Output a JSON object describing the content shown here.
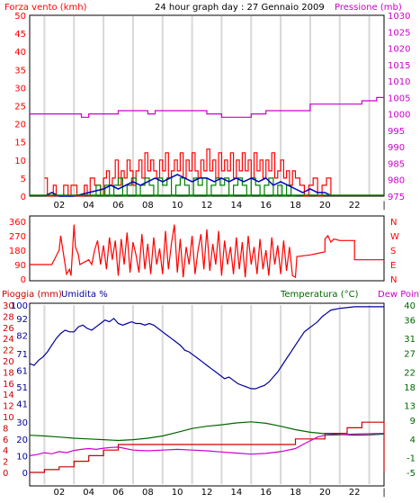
{
  "colors": {
    "wind": "#ff0000",
    "gust": "#008000",
    "wind_avg": "#0000c0",
    "pressure": "#cc00cc",
    "direction": "#ff0000",
    "humidity": "#000099",
    "rain": "#cc0000",
    "temperature": "#006600",
    "dewpoint": "#cc00cc",
    "grid": "#d8d8d8"
  },
  "chart_data": [
    {
      "type": "line",
      "id": "wind-pressure",
      "title": "24 hour graph day : 27 Gennaio 2009",
      "ylabel": "Forza vento (kmh)",
      "y2label": "Pressione (mb)",
      "xlim": [
        0,
        24
      ],
      "ylim": [
        0,
        50
      ],
      "y_ticks": [
        0,
        5,
        10,
        15,
        20,
        25,
        30,
        35,
        40,
        45,
        50
      ],
      "y2lim": [
        975,
        1030
      ],
      "y2_ticks": [
        975,
        980,
        985,
        990,
        995,
        1000,
        1005,
        1010,
        1015,
        1020,
        1025,
        1030
      ],
      "x_tick_labels": [
        "02",
        "04",
        "06",
        "08",
        "10",
        "12",
        "14",
        "16",
        "18",
        "20",
        "22"
      ],
      "series": [
        {
          "key": "wind",
          "axis": "left",
          "x": [
            1.0,
            1.2,
            1.4,
            1.6,
            1.8,
            2.1,
            2.3,
            2.6,
            2.8,
            3.0,
            3.2,
            3.5,
            3.7,
            3.9,
            4.1,
            4.4,
            4.6,
            4.8,
            5.0,
            5.2,
            5.4,
            5.6,
            5.8,
            6.0,
            6.2,
            6.4,
            6.6,
            6.8,
            7.0,
            7.2,
            7.4,
            7.6,
            7.8,
            8.0,
            8.2,
            8.4,
            8.6,
            8.8,
            9.0,
            9.2,
            9.4,
            9.6,
            9.8,
            10.0,
            10.2,
            10.4,
            10.6,
            10.8,
            11.0,
            11.2,
            11.4,
            11.6,
            11.8,
            12.0,
            12.2,
            12.4,
            12.6,
            12.8,
            13.0,
            13.2,
            13.4,
            13.6,
            13.8,
            14.0,
            14.2,
            14.4,
            14.6,
            14.8,
            15.0,
            15.2,
            15.4,
            15.6,
            15.8,
            16.0,
            16.2,
            16.4,
            16.6,
            16.8,
            17.0,
            17.2,
            17.4,
            17.6,
            17.8,
            18.0,
            18.3,
            18.6,
            18.9,
            19.2,
            19.5,
            19.8,
            20.1,
            20.4
          ],
          "values": [
            5,
            0,
            0,
            3,
            0,
            0,
            3,
            0,
            3,
            3,
            0,
            0,
            3,
            0,
            5,
            3,
            3,
            0,
            5,
            7,
            3,
            5,
            10,
            3,
            7,
            5,
            10,
            7,
            3,
            7,
            10,
            5,
            12,
            7,
            10,
            7,
            5,
            10,
            7,
            12,
            5,
            7,
            10,
            7,
            12,
            5,
            10,
            7,
            12,
            7,
            5,
            10,
            7,
            13,
            7,
            10,
            5,
            12,
            7,
            10,
            7,
            12,
            5,
            10,
            7,
            12,
            7,
            10,
            5,
            12,
            7,
            10,
            5,
            10,
            7,
            12,
            5,
            7,
            10,
            5,
            7,
            3,
            7,
            5,
            3,
            0,
            3,
            5,
            0,
            3,
            5,
            0
          ]
        },
        {
          "key": "gust",
          "axis": "left",
          "x": [
            4.2,
            4.5,
            4.8,
            5.1,
            5.4,
            5.7,
            6.0,
            6.3,
            6.6,
            6.9,
            7.2,
            7.5,
            7.8,
            8.1,
            8.4,
            8.7,
            9.0,
            9.3,
            9.6,
            9.9,
            10.2,
            10.5,
            10.8,
            11.1,
            11.4,
            11.7,
            12.0,
            12.3,
            12.6,
            12.9,
            13.2,
            13.5,
            13.8,
            14.1,
            14.4,
            14.7,
            15.0,
            15.3,
            15.6,
            15.9,
            16.2,
            16.5,
            16.8,
            17.1,
            17.4,
            17.7,
            18.0
          ],
          "values": [
            0,
            3,
            0,
            3,
            0,
            3,
            5,
            0,
            3,
            5,
            0,
            3,
            5,
            3,
            0,
            5,
            3,
            5,
            0,
            3,
            5,
            3,
            0,
            5,
            3,
            5,
            0,
            3,
            5,
            3,
            5,
            0,
            3,
            5,
            3,
            0,
            5,
            3,
            0,
            3,
            5,
            0,
            3,
            0,
            3,
            0,
            0
          ]
        },
        {
          "key": "wind_avg",
          "axis": "left",
          "x": [
            1.0,
            1.5,
            2.0,
            3.0,
            4.0,
            5.0,
            5.5,
            6.0,
            6.5,
            7.0,
            7.5,
            8.0,
            8.5,
            9.0,
            9.5,
            10.0,
            10.5,
            11.0,
            11.5,
            12.0,
            12.5,
            13.0,
            13.5,
            14.0,
            14.5,
            15.0,
            15.5,
            16.0,
            16.5,
            17.0,
            17.5,
            18.0,
            18.5,
            19.0,
            19.5,
            20.0,
            20.5
          ],
          "values": [
            0,
            1,
            0,
            0,
            1,
            2,
            3,
            2,
            3,
            4,
            3,
            4,
            5,
            4,
            5,
            6,
            5,
            4,
            5,
            5,
            4,
            5,
            4,
            5,
            4,
            5,
            4,
            5,
            3,
            4,
            3,
            2,
            1,
            2,
            1,
            1,
            0
          ]
        },
        {
          "key": "pressure",
          "axis": "right",
          "x": [
            0,
            3.5,
            3.5,
            4.0,
            4.0,
            6.0,
            6.0,
            8.0,
            8.0,
            8.5,
            8.5,
            12.0,
            12.0,
            13.0,
            13.0,
            15.0,
            15.0,
            16.0,
            16.0,
            19.0,
            19.0,
            22.5,
            22.5,
            23.5,
            23.5,
            24
          ],
          "values": [
            1000,
            1000,
            999,
            999,
            1000,
            1000,
            1001,
            1001,
            1000,
            1000,
            1001,
            1001,
            1000,
            1000,
            999,
            999,
            1000,
            1000,
            1001,
            1001,
            1003,
            1003,
            1004,
            1004,
            1005,
            1005
          ]
        }
      ]
    },
    {
      "type": "line",
      "id": "wind-direction",
      "xlim": [
        0,
        24
      ],
      "ylim": [
        0,
        360
      ],
      "y_ticks": [
        0,
        90,
        180,
        270,
        360
      ],
      "y2_tick_labels": [
        "N",
        "W",
        "S",
        "E",
        "N"
      ],
      "series": [
        {
          "key": "direction",
          "x": [
            0,
            1.0,
            1.5,
            2.0,
            2.1,
            2.4,
            2.5,
            2.7,
            2.8,
            3.0,
            3.1,
            3.3,
            3.4,
            3.6,
            4.0,
            4.2,
            4.4,
            4.6,
            4.8,
            5.0,
            5.2,
            5.4,
            5.6,
            5.8,
            6.0,
            6.2,
            6.4,
            6.6,
            6.8,
            7.0,
            7.2,
            7.4,
            7.6,
            7.8,
            8.0,
            8.2,
            8.4,
            8.6,
            8.8,
            9.0,
            9.2,
            9.4,
            9.6,
            9.8,
            10.0,
            10.2,
            10.4,
            10.6,
            10.8,
            11.0,
            11.2,
            11.4,
            11.6,
            11.8,
            12.0,
            12.2,
            12.4,
            12.6,
            12.8,
            13.0,
            13.2,
            13.4,
            13.6,
            13.8,
            14.0,
            14.2,
            14.4,
            14.6,
            14.8,
            15.0,
            15.2,
            15.4,
            15.6,
            15.8,
            16.0,
            16.2,
            16.4,
            16.6,
            16.8,
            17.0,
            17.2,
            17.4,
            17.6,
            17.8,
            18.0,
            18.1,
            19.0,
            19.5,
            20.0,
            20.0,
            20.2,
            20.4,
            20.6,
            21.0,
            22.0,
            22.0,
            24
          ],
          "values": [
            90,
            90,
            90,
            180,
            270,
            90,
            30,
            60,
            20,
            340,
            200,
            150,
            90,
            100,
            120,
            90,
            180,
            240,
            90,
            210,
            60,
            260,
            120,
            240,
            20,
            250,
            90,
            290,
            40,
            230,
            150,
            40,
            280,
            60,
            220,
            30,
            260,
            90,
            190,
            30,
            300,
            60,
            220,
            340,
            40,
            250,
            10,
            200,
            90,
            270,
            30,
            180,
            280,
            60,
            310,
            50,
            220,
            90,
            300,
            20,
            240,
            90,
            200,
            30,
            260,
            60,
            230,
            10,
            270,
            90,
            200,
            30,
            250,
            60,
            180,
            20,
            260,
            90,
            210,
            30,
            240,
            50,
            200,
            20,
            10,
            140,
            150,
            160,
            170,
            250,
            270,
            230,
            250,
            240,
            240,
            120,
            120
          ]
        }
      ]
    },
    {
      "type": "line",
      "id": "rain-humidity-temperature",
      "ylabel": "Pioggia (mm)",
      "ylabel2": "Umidita %",
      "y2label": "Temperatura (°C)",
      "y2label2": "Dew Point",
      "xlim": [
        0,
        24
      ],
      "rain_ticks": [
        0,
        2,
        4,
        6,
        8,
        10,
        12,
        14,
        16,
        18,
        20,
        22,
        24,
        26,
        28,
        30
      ],
      "humidity_ticks": [
        0,
        10,
        20,
        30,
        41,
        51,
        61,
        71,
        82,
        92,
        100
      ],
      "ylim": [
        0,
        30
      ],
      "hum_lim": [
        0,
        100
      ],
      "temp_lim": [
        -5,
        40
      ],
      "temp_ticks": [
        -5,
        -1,
        4,
        9,
        13,
        18,
        22,
        27,
        31,
        36,
        40
      ],
      "x_tick_labels": [
        "02",
        "04",
        "06",
        "08",
        "10",
        "12",
        "14",
        "16",
        "18",
        "20",
        "22"
      ],
      "series": [
        {
          "key": "humidity",
          "axis": "humidity",
          "x": [
            0,
            0.3,
            0.6,
            0.9,
            1.2,
            1.5,
            1.8,
            2.1,
            2.4,
            2.7,
            3.0,
            3.3,
            3.6,
            3.9,
            4.2,
            4.5,
            4.8,
            5.1,
            5.4,
            5.7,
            6.0,
            6.3,
            6.6,
            6.9,
            7.2,
            7.5,
            7.8,
            8.1,
            8.4,
            8.7,
            9.0,
            9.3,
            9.6,
            9.9,
            10.2,
            10.5,
            10.8,
            11.1,
            11.4,
            11.7,
            12.0,
            12.3,
            12.6,
            12.9,
            13.2,
            13.5,
            13.8,
            14.1,
            14.4,
            14.7,
            15.0,
            15.3,
            15.6,
            15.9,
            16.2,
            16.5,
            16.8,
            17.1,
            17.4,
            17.7,
            18.0,
            18.3,
            18.6,
            18.9,
            19.2,
            19.5,
            19.8,
            20.1,
            20.4,
            21.0,
            22.0,
            24
          ],
          "values": [
            65,
            64,
            67,
            69,
            72,
            76,
            80,
            83,
            85,
            84,
            84,
            87,
            88,
            86,
            85,
            87,
            89,
            91,
            90,
            92,
            89,
            88,
            89,
            90,
            89,
            89,
            88,
            89,
            88,
            86,
            84,
            82,
            80,
            78,
            76,
            73,
            72,
            70,
            68,
            66,
            64,
            62,
            60,
            58,
            56,
            57,
            55,
            53,
            52,
            51,
            50,
            50,
            51,
            52,
            54,
            57,
            60,
            64,
            68,
            72,
            76,
            80,
            84,
            86,
            88,
            90,
            93,
            95,
            97,
            98,
            99,
            99
          ]
        },
        {
          "key": "rain",
          "axis": "rain",
          "x": [
            0,
            1.0,
            1.0,
            2.0,
            2.0,
            3.0,
            3.0,
            4.0,
            4.0,
            5.0,
            5.0,
            6.0,
            6.0,
            18.0,
            18.0,
            20.0,
            20.0,
            21.5,
            21.5,
            22.5,
            22.5,
            24.0,
            24.0
          ],
          "values": [
            0,
            0,
            0.5,
            0.5,
            1,
            1,
            2,
            2,
            3,
            3,
            4,
            4,
            5,
            5,
            6,
            6,
            7,
            7,
            8,
            8,
            9,
            9,
            0
          ]
        },
        {
          "key": "temperature",
          "axis": "temperature",
          "x": [
            0,
            1.0,
            2.0,
            3.0,
            4.0,
            5.0,
            6.0,
            7.0,
            8.0,
            9.0,
            10.0,
            11.0,
            12.0,
            13.0,
            14.0,
            15.0,
            16.0,
            17.0,
            18.0,
            19.0,
            20.0,
            21.0,
            22.0,
            23.0,
            24.0
          ],
          "values": [
            5,
            4.8,
            4.5,
            4.2,
            4.0,
            3.8,
            3.6,
            3.8,
            4.2,
            4.8,
            5.8,
            6.8,
            7.4,
            7.8,
            8.3,
            8.6,
            8.2,
            7.4,
            6.5,
            5.8,
            5.4,
            5.2,
            5.0,
            5.1,
            5.3
          ]
        },
        {
          "key": "dewpoint",
          "axis": "temperature",
          "x": [
            0,
            0.5,
            1.0,
            1.5,
            2.0,
            2.5,
            3.0,
            3.5,
            4.0,
            4.5,
            5.0,
            5.5,
            6.0,
            7.0,
            8.0,
            9.0,
            10.0,
            11.0,
            12.0,
            13.0,
            14.0,
            15.0,
            16.0,
            17.0,
            18.0,
            18.5,
            19.0,
            19.5,
            20.0,
            21.0,
            22.0,
            23.0,
            24.0
          ],
          "values": [
            -0.5,
            -0.2,
            0.3,
            0.0,
            0.6,
            0.3,
            0.9,
            1.2,
            1.4,
            1.2,
            1.5,
            1.7,
            1.8,
            1.0,
            0.8,
            1.0,
            1.2,
            1.0,
            0.8,
            0.5,
            0.2,
            -0.1,
            0.1,
            0.6,
            1.4,
            2.5,
            3.5,
            4.5,
            5.0,
            5.1,
            5.3,
            5.4,
            5.5
          ]
        }
      ]
    }
  ]
}
